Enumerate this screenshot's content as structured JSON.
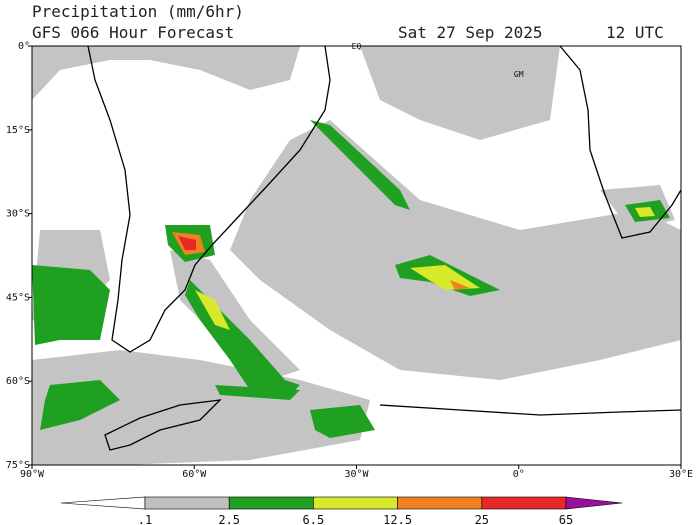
{
  "map": {
    "title": "Precipitation (mm/6hr)",
    "subtitle": "GFS 066 Hour Forecast",
    "date": "Sat 27 Sep 2025",
    "time": "12 UTC",
    "xlim": [
      -90,
      30
    ],
    "xticks": [
      {
        "value": -90,
        "label": "90°W"
      },
      {
        "value": -60,
        "label": "60°W"
      },
      {
        "value": -30,
        "label": "30°W"
      },
      {
        "value": 0,
        "label": "0°"
      },
      {
        "value": 30,
        "label": "30°E"
      }
    ],
    "ylim": [
      -75,
      0
    ],
    "yticks": [
      {
        "value": 0,
        "label": "0°"
      },
      {
        "value": -15,
        "label": "15°S"
      },
      {
        "value": -30,
        "label": "30°S"
      },
      {
        "value": -45,
        "label": "45°S"
      },
      {
        "value": -60,
        "label": "60°S"
      },
      {
        "value": -75,
        "label": "75°S"
      }
    ],
    "places": [
      {
        "label": "EQ",
        "lon": -30,
        "lat": 0
      },
      {
        "label": "GM",
        "lon": 0,
        "lat": -5
      }
    ],
    "colorbar": {
      "levels": [
        {
          "value": 0.1,
          "label": ".1"
        },
        2.5,
        6.5,
        12.5,
        25,
        65
      ],
      "colors": [
        "#ffffff",
        "#c0c0c0",
        "#20a020",
        "#d8e82a",
        "#f08020",
        "#e82828",
        "#9a109a"
      ]
    }
  }
}
